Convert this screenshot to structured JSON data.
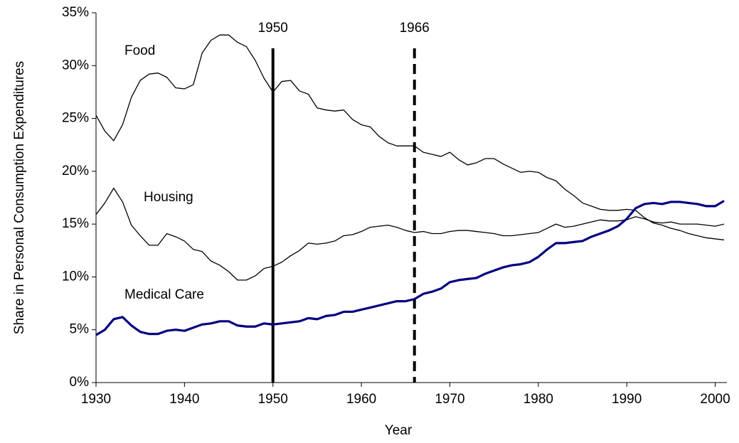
{
  "chart_data": {
    "type": "line",
    "xlabel": "Year",
    "ylabel": "Share in Personal Consumption Expenditures",
    "x": [
      1930,
      1931,
      1932,
      1933,
      1934,
      1935,
      1936,
      1937,
      1938,
      1939,
      1940,
      1941,
      1942,
      1943,
      1944,
      1945,
      1946,
      1947,
      1948,
      1949,
      1950,
      1951,
      1952,
      1953,
      1954,
      1955,
      1956,
      1957,
      1958,
      1959,
      1960,
      1961,
      1962,
      1963,
      1964,
      1965,
      1966,
      1967,
      1968,
      1969,
      1970,
      1971,
      1972,
      1973,
      1974,
      1975,
      1976,
      1977,
      1978,
      1979,
      1980,
      1981,
      1982,
      1983,
      1984,
      1985,
      1986,
      1987,
      1988,
      1989,
      1990,
      1991,
      1992,
      1993,
      1994,
      1995,
      1996,
      1997,
      1998,
      1999,
      2000,
      2001
    ],
    "series": [
      {
        "name": "Food",
        "color": "#000000",
        "width": 1.3,
        "values": [
          25.3,
          23.8,
          22.9,
          24.4,
          27.0,
          28.6,
          29.2,
          29.3,
          28.9,
          27.9,
          27.8,
          28.2,
          31.2,
          32.4,
          32.9,
          32.9,
          32.2,
          31.8,
          30.5,
          28.8,
          27.5,
          28.5,
          28.6,
          27.6,
          27.3,
          26.0,
          25.8,
          25.7,
          25.8,
          24.9,
          24.4,
          24.2,
          23.3,
          22.7,
          22.4,
          22.4,
          22.4,
          21.8,
          21.6,
          21.4,
          21.8,
          21.1,
          20.6,
          20.8,
          21.2,
          21.2,
          20.7,
          20.3,
          19.9,
          20.0,
          19.9,
          19.4,
          19.1,
          18.3,
          17.7,
          17.0,
          16.7,
          16.4,
          16.3,
          16.3,
          16.4,
          16.3,
          15.6,
          15.1,
          14.9,
          14.6,
          14.4,
          14.1,
          13.9,
          13.7,
          13.6,
          13.5
        ]
      },
      {
        "name": "Housing",
        "color": "#000000",
        "width": 1.3,
        "values": [
          15.9,
          17.0,
          18.4,
          17.1,
          14.9,
          13.9,
          13.0,
          13.0,
          14.1,
          13.8,
          13.4,
          12.6,
          12.4,
          11.5,
          11.1,
          10.5,
          9.7,
          9.7,
          10.1,
          10.8,
          11.0,
          11.4,
          12.0,
          12.5,
          13.2,
          13.1,
          13.2,
          13.4,
          13.9,
          14.0,
          14.3,
          14.7,
          14.8,
          14.9,
          14.7,
          14.4,
          14.2,
          14.3,
          14.1,
          14.1,
          14.3,
          14.4,
          14.4,
          14.3,
          14.2,
          14.1,
          13.9,
          13.9,
          14.0,
          14.1,
          14.2,
          14.6,
          15.0,
          14.7,
          14.8,
          15.0,
          15.2,
          15.4,
          15.3,
          15.3,
          15.4,
          15.7,
          15.5,
          15.2,
          15.1,
          15.2,
          15.0,
          15.0,
          15.0,
          14.9,
          14.8,
          15.0
        ]
      },
      {
        "name": "Medical Care",
        "color": "#000080",
        "width": 3.2,
        "values": [
          4.5,
          5.0,
          6.0,
          6.2,
          5.4,
          4.8,
          4.6,
          4.6,
          4.9,
          5.0,
          4.9,
          5.2,
          5.5,
          5.6,
          5.8,
          5.8,
          5.4,
          5.3,
          5.3,
          5.6,
          5.5,
          5.6,
          5.7,
          5.8,
          6.1,
          6.0,
          6.3,
          6.4,
          6.7,
          6.7,
          6.9,
          7.1,
          7.3,
          7.5,
          7.7,
          7.7,
          7.9,
          8.4,
          8.6,
          8.9,
          9.5,
          9.7,
          9.8,
          9.9,
          10.3,
          10.6,
          10.9,
          11.1,
          11.2,
          11.4,
          11.9,
          12.6,
          13.2,
          13.2,
          13.3,
          13.4,
          13.8,
          14.1,
          14.4,
          14.8,
          15.5,
          16.5,
          16.9,
          17.0,
          16.9,
          17.1,
          17.1,
          17.0,
          16.9,
          16.7,
          16.7,
          17.2
        ]
      }
    ],
    "xlim": [
      1930,
      2001
    ],
    "xticks": [
      1930,
      1940,
      1950,
      1960,
      1970,
      1980,
      1990,
      2000
    ],
    "ylim": [
      0,
      35
    ],
    "yticks": [
      {
        "value": 0,
        "label": "0%"
      },
      {
        "value": 5,
        "label": "5%"
      },
      {
        "value": 10,
        "label": "10%"
      },
      {
        "value": 15,
        "label": "15%"
      },
      {
        "value": 20,
        "label": "20%"
      },
      {
        "value": 25,
        "label": "25%"
      },
      {
        "value": 30,
        "label": "30%"
      },
      {
        "value": 35,
        "label": "35%"
      }
    ],
    "vlines": [
      {
        "x": 1950,
        "label": "1950",
        "style": "solid"
      },
      {
        "x": 1966,
        "label": "1966",
        "style": "dashed"
      }
    ]
  }
}
